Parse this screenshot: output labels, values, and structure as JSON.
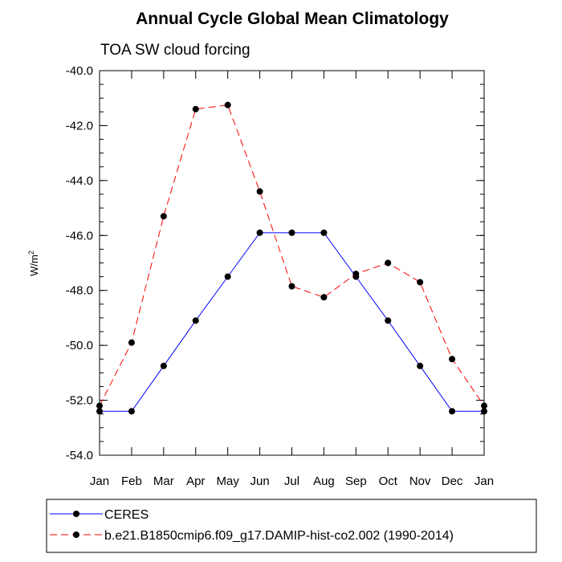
{
  "chart_data": {
    "type": "line",
    "title": "Annual Cycle Global Mean Climatology",
    "subtitle": "TOA SW cloud forcing",
    "ylabel": "W/m",
    "ylabel_sup": "2",
    "xlabel": "",
    "categories": [
      "Jan",
      "Feb",
      "Mar",
      "Apr",
      "May",
      "Jun",
      "Jul",
      "Aug",
      "Sep",
      "Oct",
      "Nov",
      "Dec",
      "Jan"
    ],
    "ylim": [
      -54.0,
      -40.0
    ],
    "yticks": [
      "-40.0",
      "-42.0",
      "-44.0",
      "-46.0",
      "-48.0",
      "-50.0",
      "-52.0",
      "-54.0"
    ],
    "grid": false,
    "legend_position": "bottom",
    "series": [
      {
        "name": "CERES",
        "color": "#0000ff",
        "dash": "solid",
        "values": [
          -52.4,
          -52.4,
          -50.75,
          -49.1,
          -47.5,
          -45.9,
          -45.9,
          -45.9,
          -47.5,
          -49.1,
          -50.75,
          -52.4,
          -52.4
        ]
      },
      {
        "name": "b.e21.B1850cmip6.f09_g17.DAMIP-hist-co2.002 (1990-2014)",
        "color": "#ff0000",
        "dash": "dashed",
        "values": [
          -52.2,
          -49.9,
          -45.3,
          -41.4,
          -41.25,
          -44.4,
          -47.85,
          -48.25,
          -47.4,
          -47.0,
          -47.7,
          -50.5,
          -52.2
        ]
      }
    ]
  }
}
